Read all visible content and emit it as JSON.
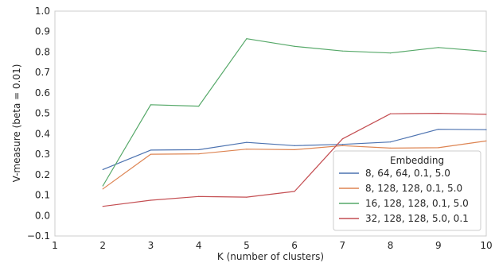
{
  "chart_data": {
    "type": "line",
    "xlabel": "K (number of clusters)",
    "ylabel": "V-measure (beta = 0.01)",
    "xlim": [
      1,
      10
    ],
    "ylim": [
      -0.1,
      1.0
    ],
    "xticks": [
      1,
      2,
      3,
      4,
      5,
      6,
      7,
      8,
      9,
      10
    ],
    "yticks": [
      -0.1,
      0.0,
      0.1,
      0.2,
      0.3,
      0.4,
      0.5,
      0.6,
      0.7,
      0.8,
      0.9,
      1.0
    ],
    "grid": false,
    "legend": {
      "title": "Embedding",
      "placement": "lower-right"
    },
    "x": [
      2,
      3,
      4,
      5,
      6,
      7,
      8,
      9,
      10
    ],
    "series": [
      {
        "name": "8, 64, 64, 0.1, 5.0",
        "color": "#4c72b0",
        "values": [
          0.225,
          0.32,
          0.322,
          0.358,
          0.342,
          0.348,
          0.36,
          0.422,
          0.42
        ]
      },
      {
        "name": "8, 128, 128, 0.1, 5.0",
        "color": "#dd8452",
        "values": [
          0.13,
          0.3,
          0.302,
          0.325,
          0.322,
          0.342,
          0.33,
          0.332,
          0.365
        ]
      },
      {
        "name": "16, 128, 128, 0.1, 5.0",
        "color": "#55a868",
        "values": [
          0.145,
          0.542,
          0.535,
          0.865,
          0.828,
          0.805,
          0.795,
          0.822,
          0.803
        ]
      },
      {
        "name": "32, 128, 128, 5.0, 0.1",
        "color": "#c44e52",
        "values": [
          0.045,
          0.075,
          0.093,
          0.09,
          0.118,
          0.375,
          0.498,
          0.5,
          0.495
        ]
      }
    ]
  }
}
